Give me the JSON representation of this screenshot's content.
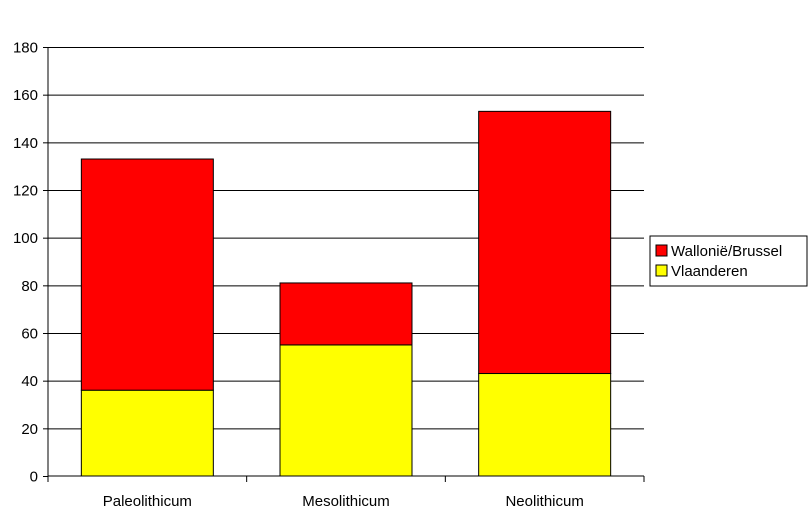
{
  "chart_data": {
    "type": "bar",
    "stacked": true,
    "categories": [
      "Paleolithicum",
      "Mesolithicum",
      "Neolithicum"
    ],
    "series": [
      {
        "name": "Vlaanderen",
        "values": [
          36,
          55,
          43
        ],
        "color": "#FFFF00"
      },
      {
        "name": "Wallonië/Brussel",
        "values": [
          97,
          26,
          110
        ],
        "color": "#FF0000"
      }
    ],
    "title": "",
    "xlabel": "",
    "ylabel": "",
    "ylim": [
      0,
      180
    ],
    "yticks": [
      0,
      20,
      40,
      60,
      80,
      100,
      120,
      140,
      160,
      180
    ],
    "grid": true,
    "legend": {
      "placement": "right",
      "order": [
        "Wallonië/Brussel",
        "Vlaanderen"
      ]
    }
  }
}
